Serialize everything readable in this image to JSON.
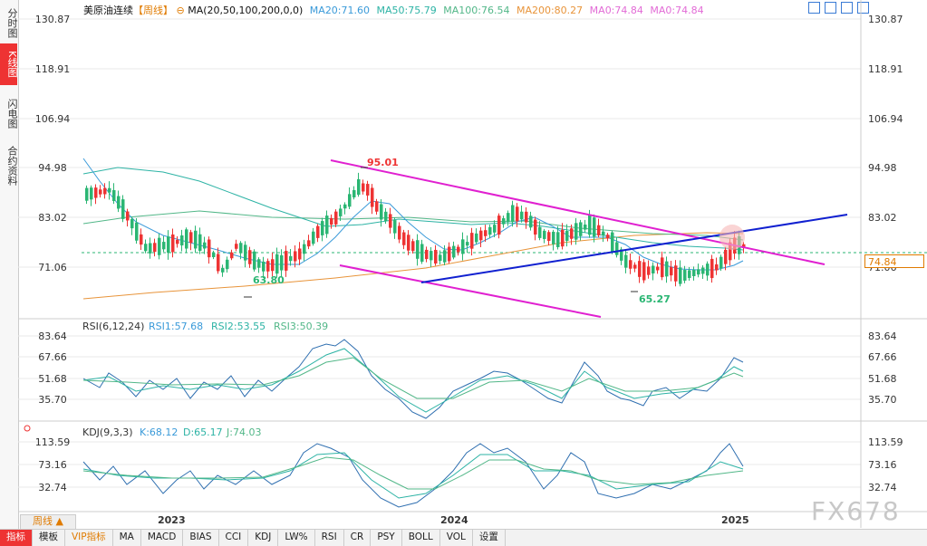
{
  "side_tabs": [
    {
      "label": "分时图",
      "active": false
    },
    {
      "label": "K线图",
      "active": true
    },
    {
      "label": "闪电图",
      "active": false
    },
    {
      "label": "合约资料",
      "active": false
    }
  ],
  "header": {
    "symbol": "美原油连续",
    "period_tag": "【周线】",
    "ma_params": "MA(20,50,100,200,0,0)",
    "ma20": "MA20:71.60",
    "ma50": "MA50:75.79",
    "ma100": "MA100:76.54",
    "ma200": "MA200:80.27",
    "ma0a": "MA0:74.84",
    "ma0b": "MA0:74.84"
  },
  "price_axis": [
    "130.87",
    "118.91",
    "106.94",
    "94.98",
    "83.02",
    "71.06"
  ],
  "current_price": "74.84",
  "annotations": {
    "high": "95.01",
    "low1": "63.80",
    "low2": "65.27"
  },
  "rsi": {
    "title": "RSI(6,12,24)",
    "rsi1": "RSI1:57.68",
    "rsi2": "RSI2:53.55",
    "rsi3": "RSI3:50.39",
    "axis": [
      "83.64",
      "67.66",
      "51.68",
      "35.70"
    ]
  },
  "kdj": {
    "title": "KDJ(9,3,3)",
    "k": "K:68.12",
    "d": "D:65.17",
    "j": "J:74.03",
    "axis": [
      "113.59",
      "73.16",
      "32.74"
    ]
  },
  "x_axis": [
    "2023",
    "2024",
    "2025"
  ],
  "period_button": "周线 ▲",
  "toolbar": [
    "指标",
    "模板",
    "VIP指标",
    "MA",
    "MACD",
    "BIAS",
    "CCI",
    "KDJ",
    "LW%",
    "RSI",
    "CR",
    "PSY",
    "BOLL",
    "VOL",
    "设置"
  ],
  "watermark": "FX678",
  "colors": {
    "ma20": "#3a9ad9",
    "ma50": "#2db3a5",
    "ma100": "#52b788",
    "ma200": "#e8943a",
    "ma0": "#e26bd6",
    "up": "#e33",
    "down": "#2bb673",
    "channel": "#e020d0",
    "trend": "#1020d0"
  }
}
